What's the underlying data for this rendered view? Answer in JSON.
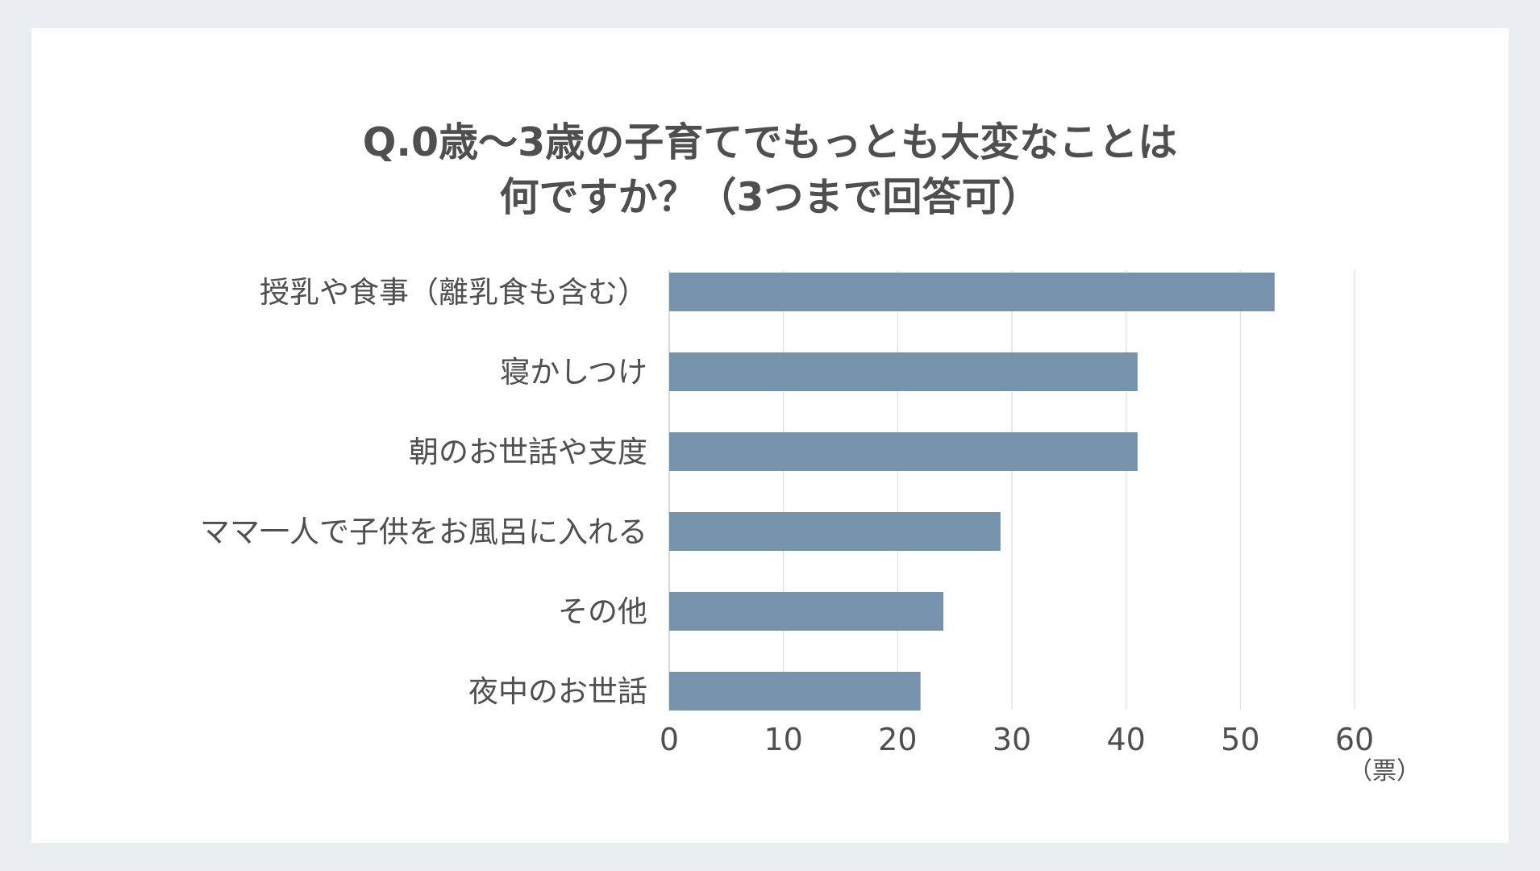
{
  "chart_data": {
    "type": "bar",
    "orientation": "horizontal",
    "title_line1": "Q.0歳〜3歳の子育てでもっとも大変なことは",
    "title_line2": "何ですか？（3つまで回答可）",
    "categories": [
      "授乳や食事（離乳食も含む）",
      "寝かしつけ",
      "朝のお世話や支度",
      "ママ一人で子供をお風呂に入れる",
      "その他",
      "夜中のお世話"
    ],
    "values": [
      53,
      41,
      41,
      29,
      24,
      22
    ],
    "xlim": [
      0,
      60
    ],
    "x_ticks": [
      "0",
      "10",
      "20",
      "30",
      "40",
      "50",
      "60"
    ],
    "x_unit_label": "（票）",
    "bar_color": "#7693ab",
    "grid": true,
    "legend": "none"
  }
}
